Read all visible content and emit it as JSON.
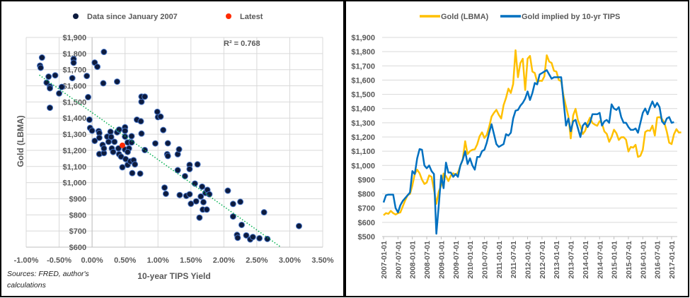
{
  "chart_data": [
    {
      "type": "scatter",
      "legend": [
        "Data since January 2007",
        "Latest"
      ],
      "legend_placement": "top",
      "xlabel": "10-year TIPS Yield",
      "ylabel": "Gold (LBMA)",
      "xlim": [
        -1.0,
        3.5
      ],
      "ylim": [
        600,
        1900
      ],
      "xticks": [
        "-1.00%",
        "-0.50%",
        "0.00%",
        "0.50%",
        "1.00%",
        "1.50%",
        "2.00%",
        "2.50%",
        "3.00%",
        "3.50%"
      ],
      "yticks": [
        "$600",
        "$700",
        "$800",
        "$900",
        "$1,000",
        "$1,100",
        "$1,200",
        "$1,300",
        "$1,400",
        "$1,500",
        "$1,600",
        "$1,700",
        "$1,800",
        "$1,900"
      ],
      "annotation": "R² = 0.768",
      "source_note": "Sources: FRED, author's calculations",
      "grid": true,
      "colors": {
        "data": "#0d1b3e",
        "data_edge": "#4472c4",
        "latest": "#ff2a00",
        "trend": "#00b050"
      },
      "trendline": {
        "slope": -291,
        "intercept": 1434
      },
      "points": [
        [
          -0.76,
          1775
        ],
        [
          -0.79,
          1725
        ],
        [
          -0.78,
          1712
        ],
        [
          -0.66,
          1657
        ],
        [
          -0.69,
          1620
        ],
        [
          -0.64,
          1596
        ],
        [
          -0.64,
          1585
        ],
        [
          -0.56,
          1665
        ],
        [
          -0.5,
          1553
        ],
        [
          -0.46,
          1593
        ],
        [
          -0.64,
          1464
        ],
        [
          -0.28,
          1766
        ],
        [
          -0.28,
          1743
        ],
        [
          -0.3,
          1648
        ],
        [
          -0.08,
          1661
        ],
        [
          -0.06,
          1530
        ],
        [
          -0.04,
          1390
        ],
        [
          -0.03,
          1339
        ],
        [
          0.0,
          1322
        ],
        [
          0.04,
          1744
        ],
        [
          0.08,
          1718
        ],
        [
          0.18,
          1810
        ],
        [
          0.17,
          1616
        ],
        [
          0.38,
          1626
        ],
        [
          0.04,
          1259
        ],
        [
          0.1,
          1319
        ],
        [
          0.11,
          1307
        ],
        [
          0.11,
          1278
        ],
        [
          0.11,
          1177
        ],
        [
          0.16,
          1234
        ],
        [
          0.18,
          1183
        ],
        [
          0.18,
          1212
        ],
        [
          0.23,
          1285
        ],
        [
          0.25,
          1253
        ],
        [
          0.28,
          1315
        ],
        [
          0.29,
          1283
        ],
        [
          0.3,
          1212
        ],
        [
          0.32,
          1190
        ],
        [
          0.34,
          1253
        ],
        [
          0.38,
          1312
        ],
        [
          0.41,
          1329
        ],
        [
          0.4,
          1212
        ],
        [
          0.41,
          1176
        ],
        [
          0.44,
          1161
        ],
        [
          0.46,
          1095
        ],
        [
          0.5,
          1343
        ],
        [
          0.5,
          1321
        ],
        [
          0.5,
          1285
        ],
        [
          0.5,
          1205
        ],
        [
          0.51,
          1146
        ],
        [
          0.54,
          1249
        ],
        [
          0.56,
          1212
        ],
        [
          0.54,
          1190
        ],
        [
          0.54,
          1110
        ],
        [
          0.58,
          1132
        ],
        [
          0.6,
          1288
        ],
        [
          0.6,
          1249
        ],
        [
          0.63,
          1139
        ],
        [
          0.65,
          1113
        ],
        [
          0.61,
          1059
        ],
        [
          0.73,
          1056
        ],
        [
          0.68,
          1390
        ],
        [
          0.74,
          1380
        ],
        [
          0.75,
          1304
        ],
        [
          0.75,
          1501
        ],
        [
          0.75,
          1533
        ],
        [
          0.8,
          1533
        ],
        [
          0.8,
          1202
        ],
        [
          0.96,
          1243
        ],
        [
          0.99,
          1439
        ],
        [
          1.0,
          1406
        ],
        [
          1.04,
          1409
        ],
        [
          1.08,
          1326
        ],
        [
          1.15,
          1244
        ],
        [
          1.14,
          1176
        ],
        [
          1.15,
          1165
        ],
        [
          1.1,
          969
        ],
        [
          1.12,
          931
        ],
        [
          1.3,
          1176
        ],
        [
          1.32,
          1206
        ],
        [
          1.3,
          1077
        ],
        [
          1.41,
          1040
        ],
        [
          1.33,
          923
        ],
        [
          1.43,
          918
        ],
        [
          1.48,
          928
        ],
        [
          1.48,
          1110
        ],
        [
          1.48,
          1084
        ],
        [
          1.5,
          869
        ],
        [
          1.56,
          994
        ],
        [
          1.58,
          884
        ],
        [
          1.6,
          1113
        ],
        [
          1.63,
          783
        ],
        [
          1.65,
          914
        ],
        [
          1.67,
          975
        ],
        [
          1.69,
          879
        ],
        [
          1.68,
          833
        ],
        [
          1.74,
          833
        ],
        [
          1.72,
          936
        ],
        [
          1.75,
          955
        ],
        [
          1.78,
          928
        ],
        [
          2.06,
          950
        ],
        [
          2.14,
          868
        ],
        [
          2.14,
          790
        ],
        [
          2.25,
          881
        ],
        [
          2.27,
          738
        ],
        [
          2.2,
          676
        ],
        [
          2.21,
          658
        ],
        [
          2.34,
          673
        ],
        [
          2.4,
          648
        ],
        [
          2.44,
          663
        ],
        [
          2.54,
          655
        ],
        [
          2.66,
          651
        ],
        [
          2.61,
          816
        ],
        [
          3.14,
          731
        ]
      ],
      "latest": [
        0.46,
        1231
      ]
    },
    {
      "type": "line",
      "legend_placement": "top",
      "ylim": [
        500,
        1900
      ],
      "yticks": [
        "$500",
        "$600",
        "$700",
        "$800",
        "$900",
        "$1,000",
        "$1,100",
        "$1,200",
        "$1,300",
        "$1,400",
        "$1,500",
        "$1,600",
        "$1,700",
        "$1,800",
        "$1,900"
      ],
      "xticks": [
        "2007-01-01",
        "2007-07-01",
        "2008-01-01",
        "2008-07-01",
        "2009-01-01",
        "2009-07-01",
        "2010-01-01",
        "2010-07-01",
        "2011-01-01",
        "2011-07-01",
        "2012-01-01",
        "2012-07-01",
        "2013-01-01",
        "2013-07-01",
        "2014-01-01",
        "2014-07-01",
        "2015-01-01",
        "2015-07-01",
        "2016-01-01",
        "2016-07-01",
        "2017-01-01"
      ],
      "x_start": "2007-01",
      "x_step": "monthly",
      "grid": true,
      "series": [
        {
          "name": "Gold (LBMA)",
          "color": "#ffc000",
          "values": [
            650,
            665,
            660,
            680,
            665,
            655,
            665,
            670,
            712,
            754,
            790,
            800,
            860,
            940,
            970,
            945,
            900,
            870,
            880,
            930,
            920,
            830,
            730,
            816,
            858,
            943,
            924,
            890,
            928,
            945,
            934,
            949,
            996,
            1043,
            1170,
            1080,
            1100,
            1110,
            1113,
            1148,
            1205,
            1233,
            1193,
            1215,
            1271,
            1343,
            1370,
            1391,
            1356,
            1330,
            1424,
            1474,
            1540,
            1510,
            1572,
            1810,
            1620,
            1720,
            1750,
            1530,
            1750,
            1770,
            1660,
            1650,
            1585,
            1596,
            1594,
            1626,
            1775,
            1730,
            1721,
            1665,
            1660,
            1600,
            1593,
            1487,
            1414,
            1343,
            1190,
            1352,
            1398,
            1316,
            1275,
            1221,
            1244,
            1300,
            1336,
            1299,
            1287,
            1279,
            1311,
            1296,
            1239,
            1222,
            1166,
            1200,
            1251,
            1227,
            1179,
            1198,
            1199,
            1181,
            1098,
            1130,
            1125,
            1145,
            1060,
            1068,
            1110,
            1235,
            1246,
            1243,
            1280,
            1210,
            1337,
            1340,
            1326,
            1300,
            1238,
            1160,
            1150,
            1220,
            1255,
            1231,
            1233
          ]
        },
        {
          "name": "Gold implied by 10-yr TIPS",
          "color": "#0070c0",
          "values": [
            740,
            790,
            795,
            795,
            795,
            700,
            670,
            720,
            750,
            770,
            790,
            810,
            960,
            940,
            1050,
            1115,
            1110,
            1000,
            980,
            1000,
            960,
            940,
            520,
            720,
            930,
            840,
            1020,
            950,
            950,
            920,
            940,
            920,
            1000,
            1040,
            1100,
            1010,
            1050,
            1000,
            970,
            1060,
            1060,
            1100,
            1110,
            1160,
            1230,
            1290,
            1220,
            1150,
            1130,
            1140,
            1150,
            1220,
            1210,
            1230,
            1330,
            1385,
            1390,
            1420,
            1440,
            1470,
            1520,
            1460,
            1510,
            1580,
            1570,
            1640,
            1650,
            1660,
            1670,
            1640,
            1610,
            1620,
            1620,
            1620,
            1620,
            1450,
            1280,
            1330,
            1240,
            1310,
            1320,
            1260,
            1200,
            1280,
            1300,
            1270,
            1300,
            1360,
            1360,
            1360,
            1370,
            1280,
            1310,
            1320,
            1300,
            1430,
            1400,
            1390,
            1410,
            1340,
            1300,
            1300,
            1270,
            1250,
            1250,
            1260,
            1230,
            1300,
            1370,
            1400,
            1360,
            1410,
            1450,
            1410,
            1440,
            1410,
            1310,
            1290,
            1330,
            1340,
            1300,
            1305
          ]
        }
      ]
    }
  ]
}
